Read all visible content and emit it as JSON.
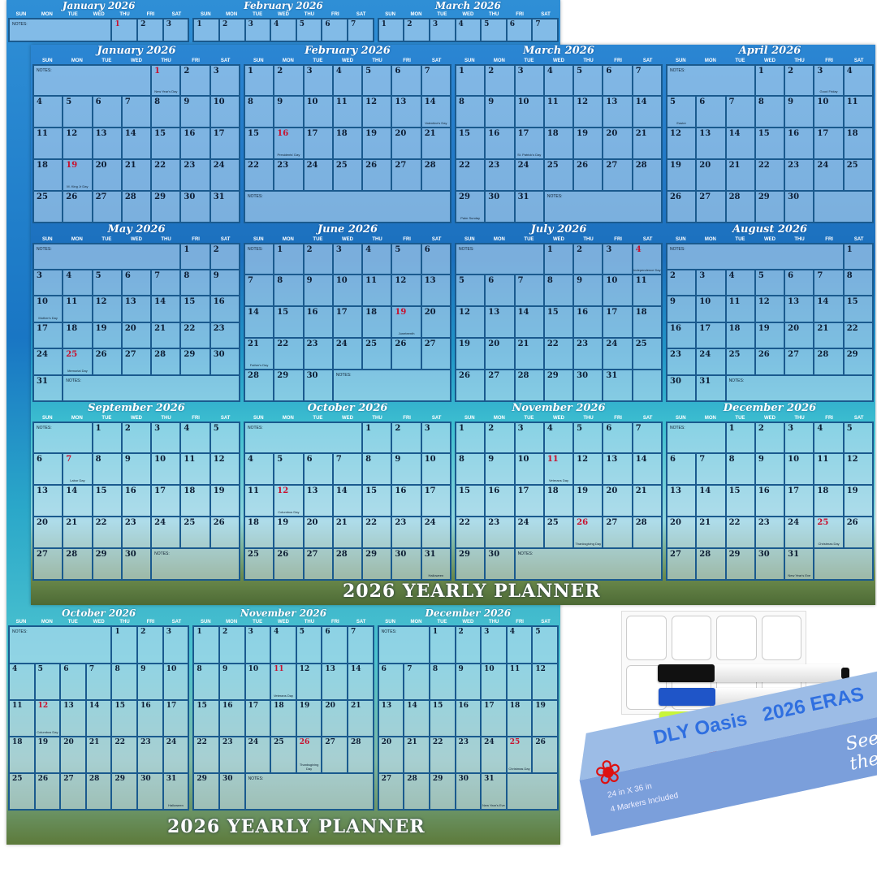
{
  "planner_title": "2026 YEARLY PLANNER",
  "notes_label": "NOTES:",
  "weekdays": [
    "SUN",
    "MON",
    "TUE",
    "WED",
    "THU",
    "FRI",
    "SAT"
  ],
  "months": [
    {
      "name": "January 2026",
      "start": 4,
      "days": 31,
      "holidays": [
        {
          "day": 1,
          "label": "New Year's Day",
          "red": true
        },
        {
          "day": 19,
          "label": "M. King Jr Day",
          "red": true
        }
      ]
    },
    {
      "name": "February 2026",
      "start": 0,
      "days": 28,
      "holidays": [
        {
          "day": 14,
          "label": "Valentine's Day",
          "red": false
        },
        {
          "day": 16,
          "label": "Presidents' Day",
          "red": true
        }
      ]
    },
    {
      "name": "March 2026",
      "start": 0,
      "days": 31,
      "holidays": [
        {
          "day": 17,
          "label": "St. Patrick's Day",
          "red": false
        },
        {
          "day": 29,
          "label": "Palm Sunday",
          "red": false
        }
      ]
    },
    {
      "name": "April 2026",
      "start": 3,
      "days": 30,
      "holidays": [
        {
          "day": 3,
          "label": "Good Friday",
          "red": false
        },
        {
          "day": 5,
          "label": "Easter",
          "red": false
        }
      ]
    },
    {
      "name": "May 2026",
      "start": 5,
      "days": 31,
      "holidays": [
        {
          "day": 10,
          "label": "Mother's Day",
          "red": false
        },
        {
          "day": 25,
          "label": "Memorial Day",
          "red": true
        }
      ]
    },
    {
      "name": "June 2026",
      "start": 1,
      "days": 30,
      "holidays": [
        {
          "day": 19,
          "label": "Juneteenth",
          "red": true
        },
        {
          "day": 21,
          "label": "Father's Day",
          "red": false
        }
      ]
    },
    {
      "name": "July 2026",
      "start": 3,
      "days": 31,
      "holidays": [
        {
          "day": 4,
          "label": "Independence Day",
          "red": true
        }
      ]
    },
    {
      "name": "August 2026",
      "start": 6,
      "days": 31,
      "holidays": []
    },
    {
      "name": "September 2026",
      "start": 2,
      "days": 30,
      "holidays": [
        {
          "day": 7,
          "label": "Labor Day",
          "red": true
        }
      ]
    },
    {
      "name": "October 2026",
      "start": 4,
      "days": 31,
      "holidays": [
        {
          "day": 12,
          "label": "Columbus Day",
          "red": true
        },
        {
          "day": 31,
          "label": "Halloween",
          "red": false
        }
      ]
    },
    {
      "name": "November 2026",
      "start": 0,
      "days": 30,
      "holidays": [
        {
          "day": 11,
          "label": "Veterans Day",
          "red": true
        },
        {
          "day": 26,
          "label": "Thanksgiving Day",
          "red": true
        }
      ]
    },
    {
      "name": "December 2026",
      "start": 2,
      "days": 31,
      "holidays": [
        {
          "day": 25,
          "label": "Christmas Day",
          "red": true
        },
        {
          "day": 31,
          "label": "New Year's Eve",
          "red": false
        }
      ]
    }
  ],
  "product_box": {
    "brand": "DLY Oasis   2026 ERAS",
    "tagline": "See the",
    "size": "24 in X 36 in",
    "markers": "4 Markers Included"
  },
  "marker_colors": [
    "#111111",
    "#1f55c8",
    "#c8f53a",
    "#d11a1a"
  ]
}
